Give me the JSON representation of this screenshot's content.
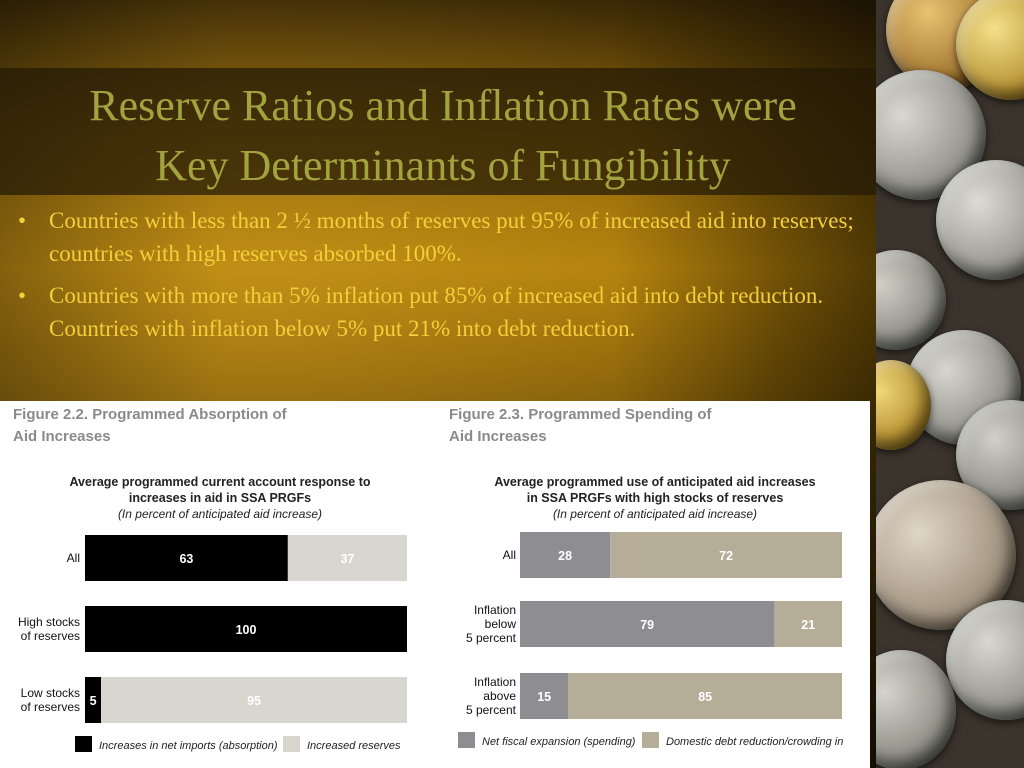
{
  "slide": {
    "title_line1": "Reserve Ratios and Inflation Rates were",
    "title_line2": "Key Determinants of Fungibility",
    "bullets": [
      "Countries with less than 2 ½ months of reserves put 95% of increased aid into reserves; countries with high reserves absorbed 100%.",
      "Countries with more than 5% inflation put 85% of increased aid into debt reduction.  Countries with inflation below 5% put 21% into debt reduction."
    ],
    "bullet_symbol": "•"
  },
  "colors": {
    "title": "#a2a23e",
    "bullet_text": "#f3cf3a",
    "absorption": "#000000",
    "reserves": "#d9d6cf",
    "spending": "#8e8e92",
    "debt_reduction": "#b5ad98"
  },
  "figures": [
    {
      "title_line1": "Figure 2.2.  Programmed Absorption of",
      "title_line2": "Aid Increases",
      "subtitle_line1": "Average programmed current account response to",
      "subtitle_line2": "increases in aid in SSA PRGFs",
      "subtitle_note": "(In percent of anticipated aid increase)"
    },
    {
      "title_line1": "Figure 2.3.  Programmed Spending of",
      "title_line2": "Aid Increases",
      "subtitle_line1": "Average programmed use of anticipated aid increases",
      "subtitle_line2": "in SSA PRGFs with high stocks of reserves",
      "subtitle_note": "(In percent of anticipated aid increase)"
    }
  ],
  "chart_data": [
    {
      "type": "bar",
      "orientation": "horizontal-stacked",
      "title": "Average programmed current account response to increases in aid in SSA PRGFs",
      "subtitle": "(In percent of anticipated aid increase)",
      "categories": [
        [
          "All"
        ],
        [
          "High stocks",
          "of reserves"
        ],
        [
          "Low stocks",
          "of reserves"
        ]
      ],
      "series": [
        {
          "name": "Increases in net imports (absorption)",
          "values": [
            63,
            100,
            5
          ],
          "color": "#000000",
          "label_color": "#ffffff"
        },
        {
          "name": "Increased reserves",
          "values": [
            37,
            0,
            95
          ],
          "color": "#d9d6cf",
          "label_color": "#ffffff"
        }
      ],
      "xlim": [
        0,
        100
      ],
      "legend": "bottom"
    },
    {
      "type": "bar",
      "orientation": "horizontal-stacked",
      "title": "Average programmed use of anticipated aid increases in SSA PRGFs with high stocks of reserves",
      "subtitle": "(In percent of anticipated aid increase)",
      "categories": [
        [
          "All"
        ],
        [
          "Inflation",
          "below",
          "5 percent"
        ],
        [
          "Inflation",
          "above",
          "5 percent"
        ]
      ],
      "series": [
        {
          "name": "Net fiscal expansion (spending)",
          "values": [
            28,
            79,
            15
          ],
          "color": "#8e8e92",
          "label_color": "#ffffff"
        },
        {
          "name": "Domestic debt reduction/crowding in",
          "values": [
            72,
            21,
            85
          ],
          "color": "#b5ad98",
          "label_color": "#ffffff"
        }
      ],
      "xlim": [
        0,
        100
      ],
      "legend": "bottom"
    }
  ]
}
